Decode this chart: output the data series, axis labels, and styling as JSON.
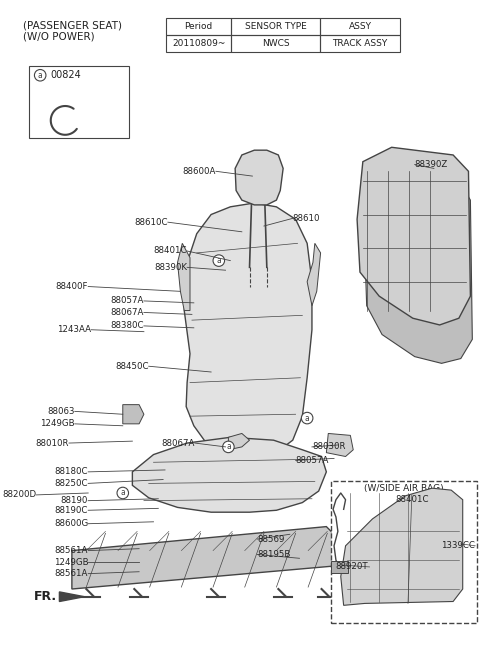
{
  "title_line1": "(PASSENGER SEAT)",
  "title_line2": "(W/O POWER)",
  "table_headers": [
    "Period",
    "SENSOR TYPE",
    "ASSY"
  ],
  "table_row": [
    "20110809~",
    "NWCS",
    "TRACK ASSY"
  ],
  "legend_code": "00824",
  "bg_color": "#ffffff",
  "line_color": "#444444",
  "text_color": "#222222",
  "inset_label": "(W/SIDE AIR BAG)",
  "fr_label": "FR."
}
